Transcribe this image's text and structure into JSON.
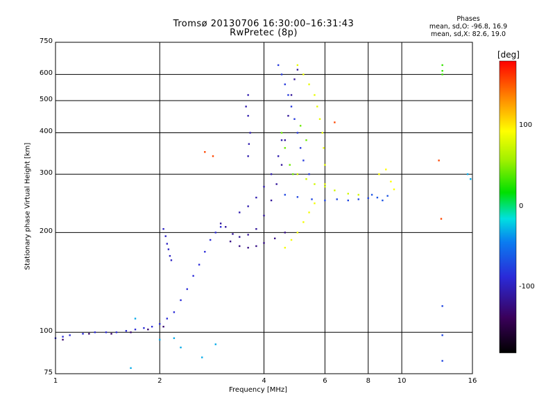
{
  "header": {
    "title_line1": "Tromsø 20130706 16:30:00–16:31:43",
    "title_line2": "RwPretec (8p)",
    "stats_title": "Phases",
    "stats_o": "mean, sd,O: -96.8, 16.9",
    "stats_x": "mean, sd,X: 82.6, 19.0"
  },
  "colorbar": {
    "label": "[deg]",
    "ticks": [
      "100",
      "0",
      "-100"
    ],
    "tick_values": [
      100,
      0,
      -100
    ],
    "range": [
      -180,
      180
    ]
  },
  "chart_data": {
    "type": "scatter",
    "title": "Tromsø 20130706 16:30:00–16:31:43",
    "subtitle": "RwPretec (8p)",
    "xlabel": "Frequency [MHz]",
    "ylabel": "Stationary phase Virtual Height [km]",
    "xscale": "log",
    "yscale": "log",
    "xlim": [
      1,
      16
    ],
    "ylim": [
      75,
      750
    ],
    "xticks": [
      1,
      2,
      4,
      6,
      8,
      10,
      16
    ],
    "xtick_labels": [
      "1",
      "2",
      "4",
      "6",
      "8",
      "10",
      "16"
    ],
    "yticks": [
      75,
      100,
      200,
      300,
      400,
      500,
      600,
      750
    ],
    "ytick_labels": [
      "75",
      "100",
      "200",
      "300",
      "400",
      "500",
      "600",
      "750"
    ],
    "grid": true,
    "color_encoding": "phase [deg], -180 to 180",
    "traces": [
      {
        "name": "",
        "phase": -110,
        "points": [
          [
            1.0,
            96
          ],
          [
            1.05,
            97
          ],
          [
            1.1,
            98
          ],
          [
            1.2,
            99
          ],
          [
            1.3,
            100
          ],
          [
            1.4,
            100
          ],
          [
            1.5,
            100
          ],
          [
            1.6,
            101
          ],
          [
            1.7,
            102
          ],
          [
            1.8,
            103
          ],
          [
            1.9,
            104
          ],
          [
            2.0,
            106
          ],
          [
            2.1,
            110
          ],
          [
            2.2,
            115
          ],
          [
            2.3,
            125
          ],
          [
            2.4,
            135
          ],
          [
            2.5,
            148
          ],
          [
            2.6,
            160
          ],
          [
            2.7,
            175
          ],
          [
            2.8,
            190
          ],
          [
            2.9,
            200
          ],
          [
            3.0,
            208
          ]
        ]
      },
      {
        "name": "",
        "phase": -125,
        "points": [
          [
            3.0,
            213
          ],
          [
            3.1,
            208
          ],
          [
            3.25,
            198
          ],
          [
            3.4,
            194
          ],
          [
            3.6,
            197
          ],
          [
            3.8,
            205
          ],
          [
            4.0,
            225
          ],
          [
            4.2,
            250
          ],
          [
            4.35,
            280
          ],
          [
            4.5,
            320
          ],
          [
            4.6,
            380
          ],
          [
            4.7,
            450
          ],
          [
            4.8,
            520
          ],
          [
            4.9,
            580
          ],
          [
            5.0,
            620
          ]
        ]
      },
      {
        "name": "",
        "phase": -130,
        "points": [
          [
            3.2,
            188
          ],
          [
            3.4,
            182
          ],
          [
            3.6,
            180
          ],
          [
            3.8,
            182
          ],
          [
            4.0,
            186
          ],
          [
            4.3,
            192
          ],
          [
            4.6,
            200
          ]
        ]
      },
      {
        "name": "",
        "phase": -120,
        "points": [
          [
            3.4,
            230
          ],
          [
            3.6,
            240
          ],
          [
            3.8,
            255
          ],
          [
            4.0,
            275
          ],
          [
            4.2,
            300
          ],
          [
            4.4,
            340
          ],
          [
            4.5,
            380
          ]
        ]
      },
      {
        "name": "",
        "phase": -105,
        "points": [
          [
            4.4,
            640
          ],
          [
            4.5,
            600
          ],
          [
            4.6,
            560
          ],
          [
            4.7,
            520
          ],
          [
            4.8,
            480
          ],
          [
            4.9,
            440
          ],
          [
            5.0,
            400
          ],
          [
            5.1,
            360
          ],
          [
            5.2,
            330
          ],
          [
            5.4,
            300
          ]
        ]
      },
      {
        "name": "",
        "phase": -100,
        "points": [
          [
            4.6,
            260
          ],
          [
            5.0,
            256
          ],
          [
            5.5,
            252
          ],
          [
            6.0,
            250
          ],
          [
            6.5,
            252
          ],
          [
            7.0,
            250
          ],
          [
            7.5,
            252
          ],
          [
            8.0,
            254
          ]
        ]
      },
      {
        "name": "",
        "phase": 90,
        "points": [
          [
            5.0,
            640
          ],
          [
            5.2,
            600
          ],
          [
            5.4,
            560
          ],
          [
            5.6,
            520
          ],
          [
            5.7,
            480
          ],
          [
            5.8,
            440
          ],
          [
            5.9,
            400
          ],
          [
            5.95,
            360
          ],
          [
            6.0,
            320
          ],
          [
            6.0,
            280
          ]
        ]
      },
      {
        "name": "",
        "phase": 80,
        "points": [
          [
            5.0,
            300
          ],
          [
            5.3,
            290
          ],
          [
            5.6,
            280
          ],
          [
            6.0,
            275
          ],
          [
            6.4,
            268
          ],
          [
            7.0,
            262
          ],
          [
            7.5,
            260
          ]
        ]
      },
      {
        "name": "",
        "phase": 95,
        "points": [
          [
            4.6,
            180
          ],
          [
            4.8,
            190
          ],
          [
            5.0,
            200
          ],
          [
            5.2,
            215
          ],
          [
            5.4,
            230
          ],
          [
            5.6,
            245
          ]
        ]
      },
      {
        "name": "",
        "phase": -135,
        "points": [
          [
            1.05,
            95
          ],
          [
            1.25,
            99
          ],
          [
            1.45,
            99
          ],
          [
            1.65,
            100
          ],
          [
            1.85,
            102
          ],
          [
            2.05,
            104
          ]
        ]
      },
      {
        "name": "",
        "phase": -115,
        "points": [
          [
            2.05,
            205
          ],
          [
            2.08,
            195
          ],
          [
            2.1,
            185
          ],
          [
            2.12,
            178
          ],
          [
            2.14,
            170
          ],
          [
            2.16,
            165
          ]
        ]
      },
      {
        "name": "",
        "phase": -120,
        "points": [
          [
            3.6,
            340
          ],
          [
            3.62,
            370
          ],
          [
            3.65,
            400
          ],
          [
            3.6,
            450
          ],
          [
            3.55,
            480
          ],
          [
            3.6,
            520
          ]
        ]
      },
      {
        "name": "",
        "phase": 40,
        "points": [
          [
            4.5,
            400
          ],
          [
            4.6,
            360
          ],
          [
            4.75,
            320
          ],
          [
            4.85,
            300
          ],
          [
            5.1,
            420
          ],
          [
            5.3,
            380
          ]
        ]
      },
      {
        "name": "",
        "phase": -95,
        "points": [
          [
            8.2,
            260
          ],
          [
            8.5,
            255
          ],
          [
            8.8,
            250
          ],
          [
            9.1,
            258
          ]
        ]
      },
      {
        "name": "",
        "phase": 100,
        "points": [
          [
            8.6,
            300
          ],
          [
            9.0,
            310
          ],
          [
            9.3,
            285
          ],
          [
            9.5,
            270
          ]
        ]
      },
      {
        "name": "",
        "phase": 20,
        "points": [
          [
            13.1,
            640
          ],
          [
            13.1,
            615
          ],
          [
            13.1,
            600
          ]
        ]
      },
      {
        "name": "",
        "phase": -100,
        "points": [
          [
            13.1,
            120
          ],
          [
            13.1,
            98
          ],
          [
            13.1,
            82
          ]
        ]
      },
      {
        "name": "",
        "phase": 160,
        "points": [
          [
            12.8,
            330
          ],
          [
            13.0,
            220
          ],
          [
            6.4,
            430
          ],
          [
            2.7,
            350
          ],
          [
            2.85,
            340
          ]
        ]
      },
      {
        "name": "",
        "phase": -50,
        "points": [
          [
            1.65,
            78
          ],
          [
            2.0,
            95
          ],
          [
            1.7,
            110
          ],
          [
            2.2,
            96
          ],
          [
            2.3,
            90
          ],
          [
            2.65,
            84
          ],
          [
            2.9,
            92
          ],
          [
            15.5,
            300
          ],
          [
            15.8,
            290
          ]
        ]
      }
    ]
  }
}
